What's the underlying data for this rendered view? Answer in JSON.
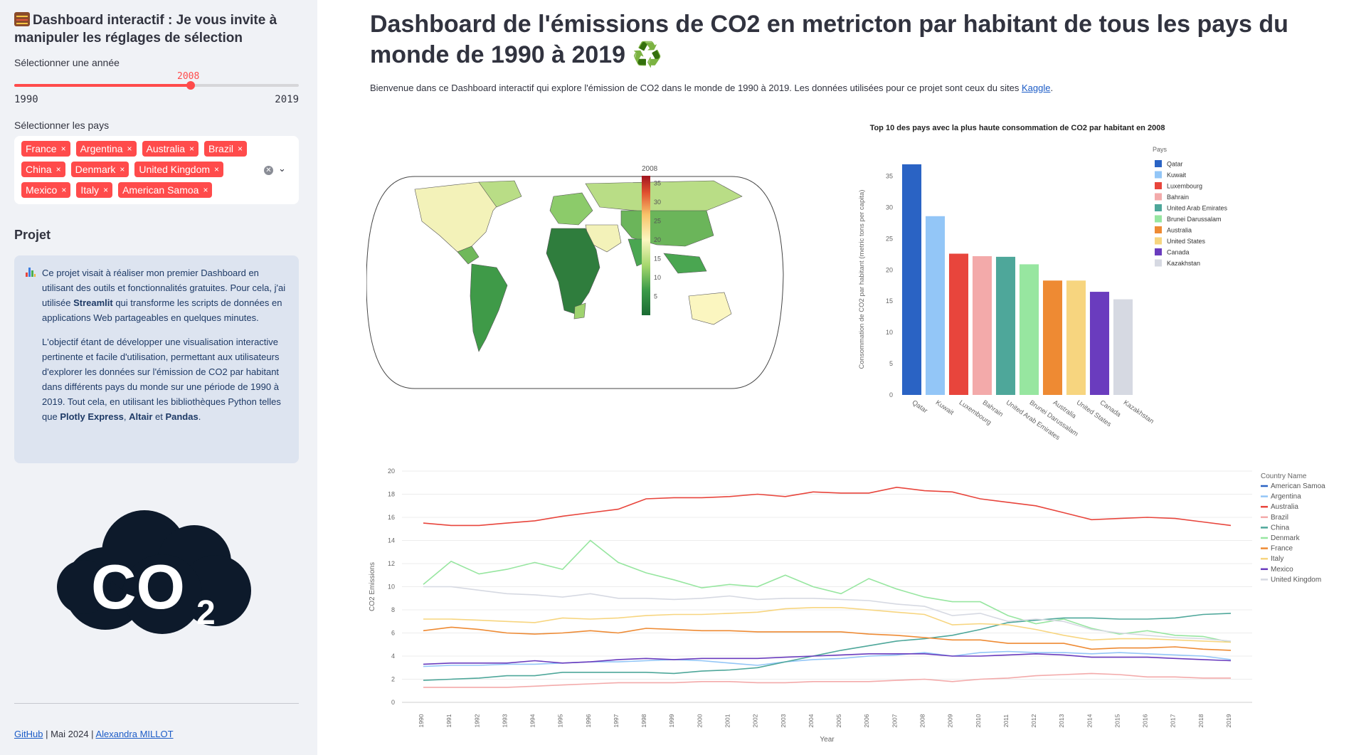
{
  "sidebar": {
    "title": "Dashboard interactif : Je vous invite à manipuler les réglages de sélection",
    "year_label": "Sélectionner une année",
    "slider": {
      "value": "2008",
      "min": "1990",
      "max": "2019",
      "fraction": 0.6207
    },
    "countries_label": "Sélectionner les pays",
    "countries": [
      "France",
      "Argentina",
      "Australia",
      "Brazil",
      "China",
      "Denmark",
      "United Kingdom",
      "Mexico",
      "Italy",
      "American Samoa"
    ],
    "projet_heading": "Projet",
    "info_p1_a": "Ce projet visait à réaliser mon premier Dashboard en utilisant des outils et fonctionnalités gratuites. Pour cela, j'ai utilisée ",
    "info_p1_b": "Streamlit",
    "info_p1_c": " qui transforme les scripts de données en applications Web partageables en quelques minutes.",
    "info_p2_a": "L'objectif étant de développer une visualisation interactive pertinente et facile d'utilisation, permettant aux utilisateurs d'explorer les données sur l'émission de CO2 par habitant dans différents pays du monde sur une période de 1990 à 2019. Tout cela, en utilisant les bibliothèques Python telles que ",
    "info_p2_b": "Plotly Express",
    "info_p2_c": ", ",
    "info_p2_d": "Altair",
    "info_p2_e": " et ",
    "info_p2_f": "Pandas",
    "info_p2_g": ".",
    "logo_text": "CO",
    "logo_sub": "2",
    "footer_github": "GitHub",
    "footer_date": " | Mai 2024 | ",
    "footer_author": "Alexandra MILLOT"
  },
  "main": {
    "title": "Dashboard de l'émissions de CO2 en metricton par habitant de tous les pays du monde de 1990 à 2019",
    "title_icon": "♻️",
    "intro": "Bienvenue dans ce Dashboard interactif qui explore l'émission de CO2 dans le monde de 1990 à 2019. Les données utilisées pour ce projet sont ceux du sites ",
    "intro_link": "Kaggle",
    "intro_end": "."
  },
  "colors": {
    "accent": "#ff4b4b",
    "link": "#1c5cc7",
    "info_bg": "#dde4f0"
  },
  "chart_data": [
    {
      "type": "choropleth",
      "colorbar_title": "2008",
      "colorbar_ticks": [
        35,
        30,
        25,
        20,
        15,
        10,
        5
      ],
      "range": [
        0,
        37
      ],
      "colorscale": [
        "#1a6b33",
        "#3b9b48",
        "#a6d86e",
        "#fbf6c0",
        "#f7c46a",
        "#e0502f",
        "#a1141f"
      ]
    },
    {
      "type": "bar",
      "title": "Top 10 des pays avec la plus haute consommation de CO2 par habitant en 2008",
      "ylabel": "Consommation de CO2 par habitant (metric tons per capita)",
      "legend_title": "Pays",
      "ylim": [
        0,
        37
      ],
      "yticks": [
        0,
        5,
        10,
        15,
        20,
        25,
        30,
        35
      ],
      "categories": [
        "Qatar",
        "Kuwait",
        "Luxembourg",
        "Bahrain",
        "United Arab Emirates",
        "Brunei Darussalam",
        "Australia",
        "United States",
        "Canada",
        "Kazakhstan"
      ],
      "values": [
        36.9,
        28.6,
        22.6,
        22.2,
        22.1,
        20.9,
        18.3,
        18.3,
        16.5,
        15.3
      ],
      "colors": [
        "#2a63c4",
        "#93c6f7",
        "#e8453c",
        "#f3aaaa",
        "#4ea79a",
        "#97e6a0",
        "#ee8a33",
        "#f7d57f",
        "#6a3cbe",
        "#d6d9e2"
      ]
    },
    {
      "type": "line",
      "xlabel": "Year",
      "ylabel": "CO2 Emissions",
      "legend_title": "Country Name",
      "ylim": [
        0,
        20
      ],
      "yticks": [
        0,
        2,
        4,
        6,
        8,
        10,
        12,
        14,
        16,
        18,
        20
      ],
      "x": [
        1990,
        1991,
        1992,
        1993,
        1994,
        1995,
        1996,
        1997,
        1998,
        1999,
        2000,
        2001,
        2002,
        2003,
        2004,
        2005,
        2006,
        2007,
        2008,
        2009,
        2010,
        2011,
        2012,
        2013,
        2014,
        2015,
        2016,
        2017,
        2018,
        2019
      ],
      "series": [
        {
          "name": "American Samoa",
          "color": "#2a63c4",
          "values": [
            null,
            null,
            null,
            null,
            null,
            null,
            null,
            null,
            null,
            null,
            null,
            null,
            null,
            null,
            null,
            null,
            null,
            null,
            null,
            null,
            null,
            null,
            null,
            null,
            null,
            null,
            null,
            null,
            null,
            null
          ]
        },
        {
          "name": "Argentina",
          "color": "#93c6f7",
          "values": [
            3.1,
            3.2,
            3.2,
            3.3,
            3.3,
            3.4,
            3.5,
            3.5,
            3.6,
            3.7,
            3.6,
            3.4,
            3.2,
            3.5,
            3.7,
            3.8,
            4.0,
            4.1,
            4.3,
            4.0,
            4.3,
            4.4,
            4.3,
            4.3,
            4.2,
            4.3,
            4.2,
            4.1,
            4.0,
            3.7
          ]
        },
        {
          "name": "Australia",
          "color": "#e8453c",
          "values": [
            15.5,
            15.3,
            15.3,
            15.5,
            15.7,
            16.1,
            16.4,
            16.7,
            17.6,
            17.7,
            17.7,
            17.8,
            18.0,
            17.8,
            18.2,
            18.1,
            18.1,
            18.6,
            18.3,
            18.2,
            17.6,
            17.3,
            17.0,
            16.4,
            15.8,
            15.9,
            16.0,
            15.9,
            15.6,
            15.3
          ]
        },
        {
          "name": "Brazil",
          "color": "#f3aaaa",
          "values": [
            1.3,
            1.3,
            1.3,
            1.3,
            1.4,
            1.5,
            1.6,
            1.7,
            1.7,
            1.7,
            1.8,
            1.8,
            1.7,
            1.7,
            1.8,
            1.8,
            1.8,
            1.9,
            2.0,
            1.8,
            2.0,
            2.1,
            2.3,
            2.4,
            2.5,
            2.4,
            2.2,
            2.2,
            2.1,
            2.1
          ]
        },
        {
          "name": "China",
          "color": "#4ea79a",
          "values": [
            1.9,
            2.0,
            2.1,
            2.3,
            2.3,
            2.6,
            2.6,
            2.6,
            2.6,
            2.5,
            2.7,
            2.8,
            3.0,
            3.5,
            4.0,
            4.5,
            4.9,
            5.3,
            5.5,
            5.8,
            6.3,
            6.9,
            7.1,
            7.3,
            7.3,
            7.2,
            7.2,
            7.3,
            7.6,
            7.7
          ]
        },
        {
          "name": "Denmark",
          "color": "#97e6a0",
          "values": [
            10.2,
            12.2,
            11.1,
            11.5,
            12.1,
            11.5,
            14.0,
            12.1,
            11.2,
            10.6,
            9.9,
            10.2,
            10.0,
            11.0,
            10.0,
            9.4,
            10.7,
            9.8,
            9.1,
            8.7,
            8.7,
            7.5,
            6.8,
            7.2,
            6.4,
            5.9,
            6.2,
            5.8,
            5.7,
            5.2
          ]
        },
        {
          "name": "France",
          "color": "#ee8a33",
          "values": [
            6.2,
            6.5,
            6.3,
            6.0,
            5.9,
            6.0,
            6.2,
            6.0,
            6.4,
            6.3,
            6.2,
            6.2,
            6.1,
            6.1,
            6.1,
            6.1,
            5.9,
            5.8,
            5.6,
            5.4,
            5.4,
            5.1,
            5.1,
            5.1,
            4.6,
            4.7,
            4.7,
            4.8,
            4.6,
            4.5
          ]
        },
        {
          "name": "Italy",
          "color": "#f7d57f",
          "values": [
            7.2,
            7.2,
            7.1,
            7.0,
            6.9,
            7.3,
            7.2,
            7.3,
            7.5,
            7.6,
            7.6,
            7.7,
            7.8,
            8.1,
            8.2,
            8.2,
            8.0,
            7.8,
            7.6,
            6.7,
            6.8,
            6.7,
            6.3,
            5.8,
            5.4,
            5.5,
            5.5,
            5.4,
            5.3,
            5.2
          ]
        },
        {
          "name": "Mexico",
          "color": "#6a3cbe",
          "values": [
            3.3,
            3.4,
            3.4,
            3.4,
            3.6,
            3.4,
            3.5,
            3.7,
            3.8,
            3.7,
            3.8,
            3.8,
            3.8,
            3.9,
            4.0,
            4.1,
            4.2,
            4.2,
            4.2,
            4.0,
            4.0,
            4.1,
            4.2,
            4.1,
            3.9,
            3.9,
            3.9,
            3.8,
            3.7,
            3.6
          ]
        },
        {
          "name": "United Kingdom",
          "color": "#d6d9e2",
          "values": [
            10.0,
            10.0,
            9.7,
            9.4,
            9.3,
            9.1,
            9.4,
            9.0,
            9.0,
            8.9,
            9.0,
            9.2,
            8.9,
            9.0,
            9.0,
            8.9,
            8.8,
            8.5,
            8.3,
            7.5,
            7.7,
            7.0,
            7.2,
            7.0,
            6.3,
            6.0,
            5.8,
            5.6,
            5.5,
            5.3
          ]
        }
      ]
    }
  ]
}
